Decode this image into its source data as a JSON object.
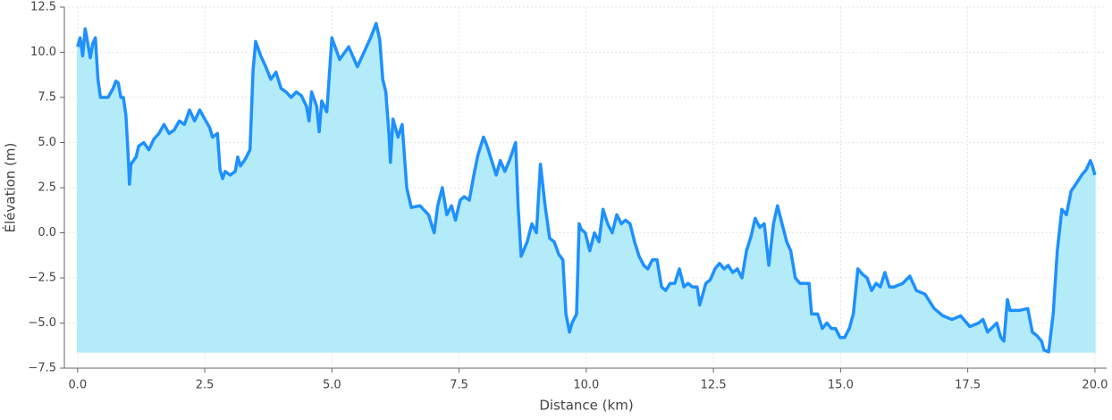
{
  "chart_data": {
    "type": "area",
    "xlabel": "Distance (km)",
    "ylabel": "Élévation (m)",
    "line_color": "#1e90ff",
    "fill_color": "#b3ebf9",
    "grid": true,
    "xlim": [
      -0.26,
      20.23
    ],
    "ylim": [
      -7.5,
      12.5
    ],
    "xticks": [
      {
        "value": 0,
        "label": "0.0"
      },
      {
        "value": 2.5,
        "label": "2.5"
      },
      {
        "value": 5,
        "label": "5.0"
      },
      {
        "value": 7.5,
        "label": "7.5"
      },
      {
        "value": 10,
        "label": "10.0"
      },
      {
        "value": 12.5,
        "label": "12.5"
      },
      {
        "value": 15,
        "label": "15.0"
      },
      {
        "value": 17.5,
        "label": "17.5"
      },
      {
        "value": 20,
        "label": "20.0"
      }
    ],
    "yticks": [
      {
        "value": -7.5,
        "label": "−7.5"
      },
      {
        "value": -5,
        "label": "−5.0"
      },
      {
        "value": -2.5,
        "label": "−2.5"
      },
      {
        "value": 0,
        "label": "0.0"
      },
      {
        "value": 2.5,
        "label": "2.5"
      },
      {
        "value": 5,
        "label": "5.0"
      },
      {
        "value": 7.5,
        "label": "7.5"
      },
      {
        "value": 10,
        "label": "10.0"
      },
      {
        "value": 12.5,
        "label": "12.5"
      }
    ],
    "x": [
      0,
      0.05,
      0.1,
      0.15,
      0.2,
      0.25,
      0.3,
      0.35,
      0.4,
      0.45,
      0.6,
      0.7,
      0.75,
      0.8,
      0.85,
      0.9,
      0.95,
      1.0,
      1.02,
      1.05,
      1.15,
      1.2,
      1.3,
      1.4,
      1.5,
      1.6,
      1.7,
      1.8,
      1.9,
      2.0,
      2.1,
      2.2,
      2.3,
      2.4,
      2.5,
      2.6,
      2.65,
      2.75,
      2.8,
      2.85,
      2.9,
      3.0,
      3.1,
      3.15,
      3.2,
      3.3,
      3.39,
      3.45,
      3.5,
      3.6,
      3.7,
      3.8,
      3.9,
      4.0,
      4.1,
      4.2,
      4.3,
      4.4,
      4.5,
      4.55,
      4.6,
      4.7,
      4.75,
      4.8,
      4.9,
      5.0,
      5.15,
      5.33,
      5.5,
      5.68,
      5.76,
      5.87,
      5.94,
      6.0,
      6.06,
      6.12,
      6.15,
      6.2,
      6.3,
      6.38,
      6.47,
      6.56,
      6.73,
      6.9,
      7.01,
      7.08,
      7.17,
      7.26,
      7.35,
      7.43,
      7.52,
      7.6,
      7.7,
      7.79,
      7.87,
      7.98,
      8.05,
      8.14,
      8.23,
      8.31,
      8.4,
      8.49,
      8.61,
      8.66,
      8.72,
      8.84,
      8.93,
      9.02,
      9.1,
      9.19,
      9.28,
      9.37,
      9.46,
      9.54,
      9.6,
      9.67,
      9.72,
      9.81,
      9.86,
      9.9,
      9.98,
      10.07,
      10.16,
      10.25,
      10.33,
      10.42,
      10.51,
      10.6,
      10.69,
      10.77,
      10.86,
      10.95,
      11.04,
      11.13,
      11.21,
      11.3,
      11.39,
      11.48,
      11.56,
      11.65,
      11.74,
      11.83,
      11.92,
      12.0,
      12.09,
      12.18,
      12.23,
      12.35,
      12.44,
      12.53,
      12.62,
      12.71,
      12.79,
      12.88,
      12.97,
      13.06,
      13.15,
      13.24,
      13.32,
      13.41,
      13.5,
      13.59,
      13.68,
      13.76,
      13.85,
      13.94,
      14.02,
      14.11,
      14.2,
      14.29,
      14.38,
      14.43,
      14.55,
      14.64,
      14.73,
      14.82,
      14.9,
      14.99,
      15.08,
      15.17,
      15.25,
      15.34,
      15.43,
      15.52,
      15.61,
      15.7,
      15.78,
      15.87,
      15.96,
      16.05,
      16.22,
      16.36,
      16.49,
      16.66,
      16.84,
      17.01,
      17.19,
      17.36,
      17.54,
      17.71,
      17.8,
      17.89,
      18.07,
      18.15,
      18.21,
      18.28,
      18.33,
      18.51,
      18.68,
      18.77,
      18.86,
      18.95,
      19.0,
      19.09,
      19.18,
      19.26,
      19.35,
      19.44,
      19.53,
      19.65,
      19.74,
      19.83,
      19.91,
      19.95,
      20.0
    ],
    "values": [
      10.3,
      10.8,
      9.8,
      11.3,
      10.5,
      9.7,
      10.5,
      10.8,
      8.5,
      7.5,
      7.5,
      8.0,
      8.4,
      8.3,
      7.5,
      7.5,
      6.5,
      4.0,
      2.7,
      3.8,
      4.2,
      4.8,
      5.0,
      4.6,
      5.2,
      5.5,
      6.0,
      5.5,
      5.7,
      6.2,
      6.0,
      6.8,
      6.2,
      6.8,
      6.3,
      5.8,
      5.3,
      5.5,
      3.5,
      3.0,
      3.4,
      3.2,
      3.4,
      4.2,
      3.7,
      4.1,
      4.6,
      9.0,
      10.6,
      9.8,
      9.2,
      8.5,
      8.9,
      8.0,
      7.8,
      7.5,
      7.8,
      7.6,
      7.0,
      6.2,
      7.8,
      7.0,
      5.6,
      7.3,
      6.7,
      10.8,
      9.6,
      10.3,
      9.2,
      10.3,
      10.8,
      11.6,
      10.7,
      8.5,
      7.8,
      5.5,
      3.9,
      6.3,
      5.3,
      6.0,
      2.5,
      1.4,
      1.5,
      1.0,
      0.0,
      1.5,
      2.5,
      1.0,
      1.5,
      0.7,
      1.8,
      2.0,
      1.8,
      3.2,
      4.3,
      5.3,
      4.8,
      4.0,
      3.2,
      4.0,
      3.4,
      4.0,
      5.0,
      1.5,
      -1.3,
      -0.5,
      0.5,
      0.0,
      3.8,
      1.5,
      -0.3,
      -0.5,
      -1.2,
      -1.5,
      -4.5,
      -5.5,
      -5.0,
      -4.5,
      0.5,
      0.2,
      0.0,
      -1.0,
      0.0,
      -0.5,
      1.3,
      0.5,
      0.0,
      1.0,
      0.5,
      0.7,
      0.5,
      -0.5,
      -1.3,
      -1.8,
      -2.0,
      -1.5,
      -1.5,
      -3.0,
      -3.2,
      -2.8,
      -2.8,
      -2.0,
      -3.0,
      -2.8,
      -3.0,
      -3.0,
      -4.0,
      -2.8,
      -2.6,
      -2.0,
      -1.7,
      -2.0,
      -1.8,
      -2.2,
      -2.0,
      -2.5,
      -1.0,
      -0.2,
      0.8,
      0.3,
      0.5,
      -1.8,
      0.5,
      1.5,
      0.5,
      -0.5,
      -1.0,
      -2.5,
      -2.8,
      -2.8,
      -2.8,
      -4.5,
      -4.5,
      -5.3,
      -5.0,
      -5.3,
      -5.3,
      -5.8,
      -5.8,
      -5.3,
      -4.5,
      -2.0,
      -2.3,
      -2.5,
      -3.2,
      -2.8,
      -3.0,
      -2.2,
      -3.0,
      -3.0,
      -2.8,
      -2.4,
      -3.2,
      -3.4,
      -4.2,
      -4.6,
      -4.8,
      -4.6,
      -5.2,
      -5.0,
      -4.8,
      -5.5,
      -5.0,
      -5.8,
      -6.0,
      -3.7,
      -4.3,
      -4.3,
      -4.2,
      -5.5,
      -5.7,
      -6.0,
      -6.5,
      -6.6,
      -4.5,
      -1.0,
      1.3,
      1.0,
      2.3,
      2.8,
      3.2,
      3.5,
      4.0,
      3.7,
      3.2
    ]
  }
}
